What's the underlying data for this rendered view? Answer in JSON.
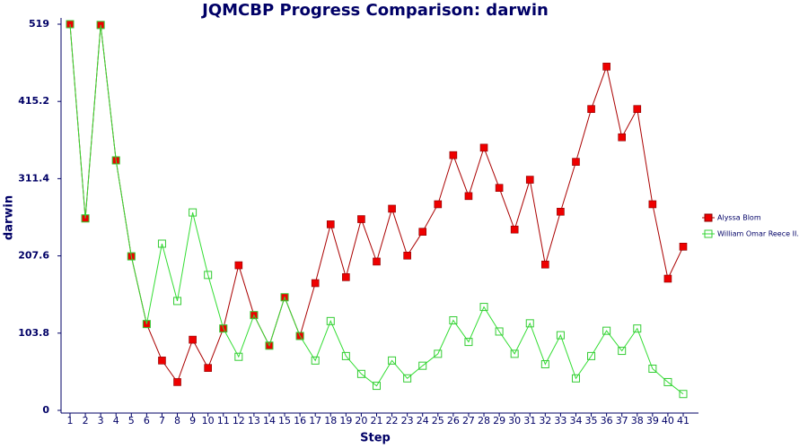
{
  "chart_data": {
    "type": "line",
    "title": "JQMCBP Progress Comparison: darwin",
    "x_label": "Step",
    "y_label": "darwin",
    "categories": [
      1,
      2,
      3,
      4,
      5,
      6,
      7,
      8,
      9,
      10,
      11,
      12,
      13,
      14,
      15,
      16,
      17,
      18,
      19,
      20,
      21,
      22,
      23,
      24,
      25,
      26,
      27,
      28,
      29,
      30,
      31,
      32,
      33,
      34,
      35,
      36,
      37,
      38,
      39,
      40,
      41
    ],
    "ylim": [
      0,
      519
    ],
    "yticks": [
      0,
      103.8,
      207.6,
      311.4,
      415.2,
      519
    ],
    "legend": "right",
    "series": [
      {
        "name": "Alyssa Blom",
        "color": "#ee0000",
        "line_color": "#aa0000",
        "marker": "filled",
        "values": [
          519,
          258,
          518,
          336,
          207,
          116,
          67,
          38,
          95,
          57,
          110,
          195,
          128,
          87,
          152,
          100,
          171,
          250,
          179,
          257,
          200,
          271,
          208,
          240,
          277,
          343,
          288,
          353,
          299,
          243,
          310,
          196,
          267,
          334,
          405,
          462,
          367,
          405,
          277,
          177,
          220
        ]
      },
      {
        "name": "William Omar Reece II.",
        "color": "#33cc33",
        "line_color": "#33dd33",
        "marker": "hollow",
        "values": [
          519,
          258,
          518,
          336,
          207,
          116,
          224,
          147,
          266,
          182,
          110,
          72,
          128,
          87,
          152,
          100,
          67,
          120,
          73,
          49,
          33,
          67,
          43,
          60,
          76,
          121,
          92,
          139,
          106,
          76,
          117,
          62,
          101,
          43,
          73,
          107,
          80,
          110,
          56,
          38,
          22
        ]
      }
    ]
  }
}
